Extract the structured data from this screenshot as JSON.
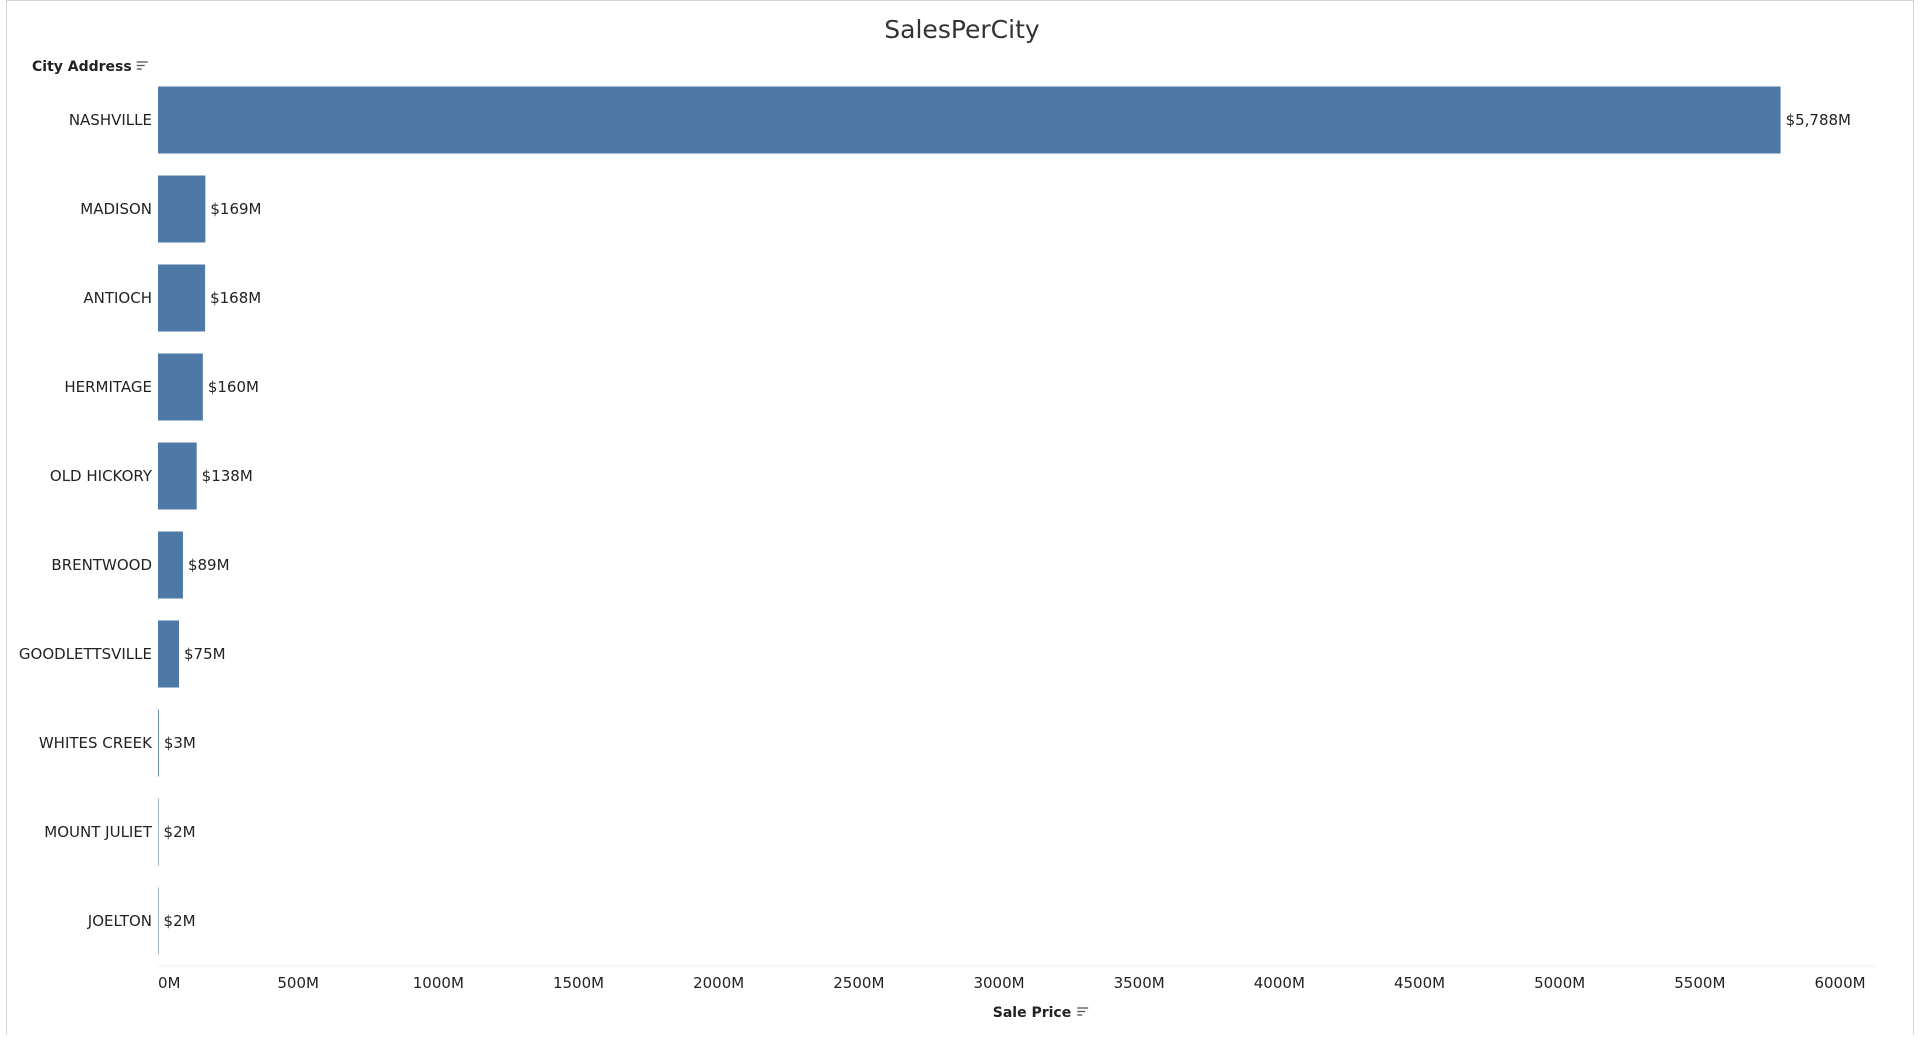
{
  "chart_data": {
    "type": "bar",
    "orientation": "horizontal",
    "title": "SalesPerCity",
    "ylabel": "City Address",
    "xlabel": "Sale Price",
    "categories": [
      "NASHVILLE",
      "MADISON",
      "ANTIOCH",
      "HERMITAGE",
      "OLD HICKORY",
      "BRENTWOOD",
      "GOODLETTSVILLE",
      "WHITES CREEK",
      "MOUNT JULIET",
      "JOELTON"
    ],
    "values": [
      5788,
      169,
      168,
      160,
      138,
      89,
      75,
      3,
      2,
      2
    ],
    "value_unit": "M",
    "data_labels": [
      "$5,788M",
      "$169M",
      "$168M",
      "$160M",
      "$138M",
      "$89M",
      "$75M",
      "$3M",
      "$2M",
      "$2M"
    ],
    "xlim": [
      0,
      6000
    ],
    "x_ticks": [
      0,
      500,
      1000,
      1500,
      2000,
      2500,
      3000,
      3500,
      4000,
      4500,
      5000,
      5500,
      6000
    ],
    "x_tick_labels": [
      "0M",
      "500M",
      "1000M",
      "1500M",
      "2000M",
      "2500M",
      "3000M",
      "3500M",
      "4000M",
      "4500M",
      "5000M",
      "5500M",
      "6000M"
    ],
    "grid": false,
    "legend": "none",
    "bar_color": "#4e79a7",
    "sort_icon": "sort-descending-icon"
  }
}
